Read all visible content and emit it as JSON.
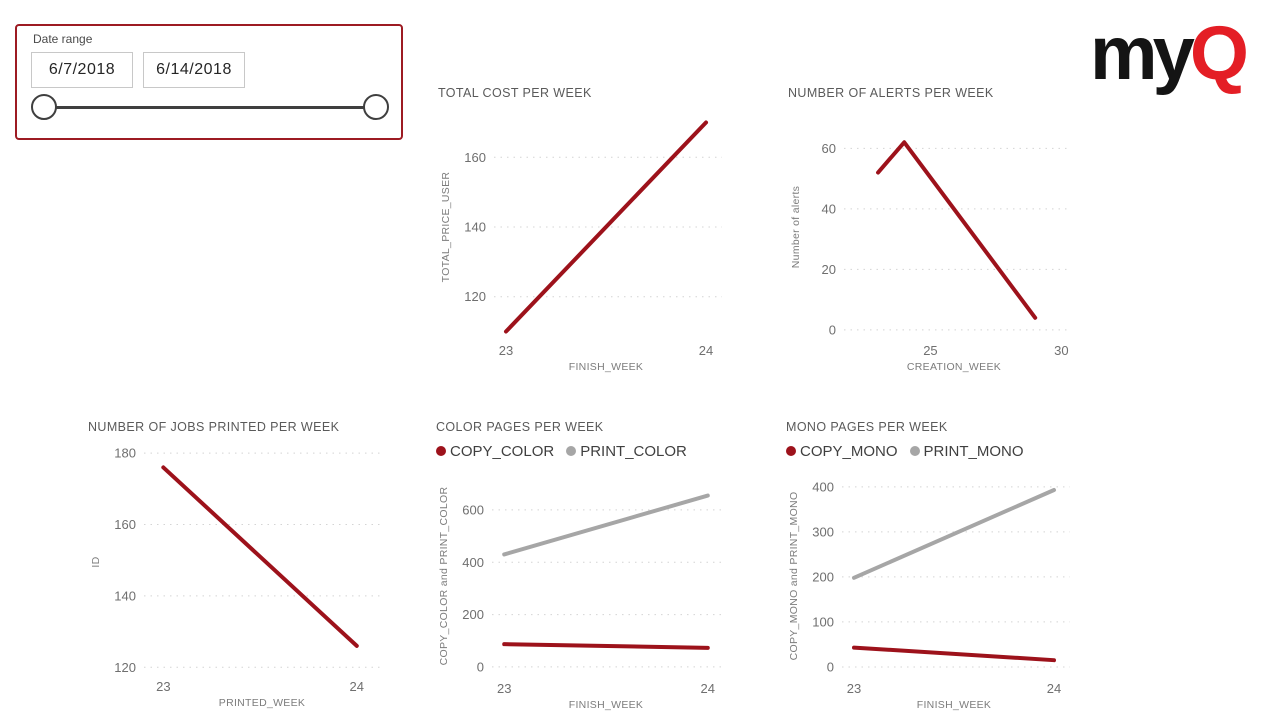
{
  "page": {
    "background": "#ffffff"
  },
  "slicer": {
    "label": "Date range",
    "start_value": "6/7/2018",
    "end_value": "6/14/2018",
    "border_color": "#9d1b23"
  },
  "logo": {
    "black_text": "my",
    "red_text": "Q",
    "black": "#141414",
    "red": "#e41e25"
  },
  "colors": {
    "line_red": "#9d121b",
    "line_gray": "#a6a6a6",
    "grid": "#d4d4d4",
    "tick_text": "#6f6f6f",
    "title_text": "#5a5a5a",
    "legend_text": "#3f3f3f",
    "axis_label_text": "#7c7c7c"
  },
  "chart_data": [
    {
      "type": "line",
      "title": "TOTAL COST PER WEEK",
      "xlabel": "FINISH_WEEK",
      "ylabel": "TOTAL_PRICE_USER",
      "xlim": [
        22.94,
        24.06
      ],
      "ylim": [
        107,
        173
      ],
      "xticks": [
        23,
        24
      ],
      "yticks": [
        120,
        140,
        160
      ],
      "grid": "dotted",
      "legend": false,
      "series": [
        {
          "name": "TOTAL_PRICE_USER",
          "color": "#9d121b",
          "points": [
            [
              23,
              110
            ],
            [
              24,
              170
            ]
          ]
        }
      ]
    },
    {
      "type": "line",
      "title": "NUMBER OF ALERTS PER WEEK",
      "xlabel": "CREATION_WEEK",
      "ylabel": "Number of alerts",
      "xlim": [
        21.7,
        30.1
      ],
      "ylim": [
        -4,
        72
      ],
      "xticks": [
        25,
        30
      ],
      "yticks": [
        0,
        20,
        40,
        60
      ],
      "grid": "dotted",
      "legend": false,
      "series": [
        {
          "name": "Number of alerts",
          "color": "#9d121b",
          "points": [
            [
              23,
              52
            ],
            [
              24,
              62
            ],
            [
              29,
              4
            ]
          ]
        }
      ]
    },
    {
      "type": "line",
      "title": "NUMBER OF JOBS PRINTED PER WEEK",
      "xlabel": "PRINTED_WEEK",
      "ylabel": "ID",
      "xlim": [
        22.9,
        24.12
      ],
      "ylim": [
        117,
        182
      ],
      "xticks": [
        23,
        24
      ],
      "yticks": [
        120,
        140,
        160,
        180
      ],
      "grid": "dotted",
      "legend": false,
      "series": [
        {
          "name": "ID",
          "color": "#9d121b",
          "points": [
            [
              23,
              176
            ],
            [
              24,
              126
            ]
          ]
        }
      ]
    },
    {
      "type": "line",
      "title": "COLOR PAGES PER WEEK",
      "xlabel": "FINISH_WEEK",
      "ylabel": "COPY_COLOR and PRINT_COLOR",
      "xlim": [
        22.94,
        24.06
      ],
      "ylim": [
        -50,
        745
      ],
      "xticks": [
        23,
        24
      ],
      "yticks": [
        0,
        200,
        400,
        600
      ],
      "grid": "dotted",
      "legend": true,
      "series": [
        {
          "name": "COPY_COLOR",
          "color": "#9d121b",
          "points": [
            [
              23,
              87
            ],
            [
              24,
              73
            ]
          ]
        },
        {
          "name": "PRINT_COLOR",
          "color": "#a6a6a6",
          "points": [
            [
              23,
              430
            ],
            [
              24,
              655
            ]
          ]
        }
      ]
    },
    {
      "type": "line",
      "title": "MONO PAGES PER WEEK",
      "xlabel": "FINISH_WEEK",
      "ylabel": "COPY_MONO and PRINT_MONO",
      "xlim": [
        22.94,
        24.06
      ],
      "ylim": [
        -29,
        433
      ],
      "xticks": [
        23,
        24
      ],
      "yticks": [
        0,
        100,
        200,
        300,
        400
      ],
      "grid": "dotted",
      "legend": true,
      "series": [
        {
          "name": "COPY_MONO",
          "color": "#9d121b",
          "points": [
            [
              23,
              43
            ],
            [
              24,
              15
            ]
          ]
        },
        {
          "name": "PRINT_MONO",
          "color": "#a6a6a6",
          "points": [
            [
              23,
              198
            ],
            [
              24,
              393
            ]
          ]
        }
      ]
    }
  ]
}
